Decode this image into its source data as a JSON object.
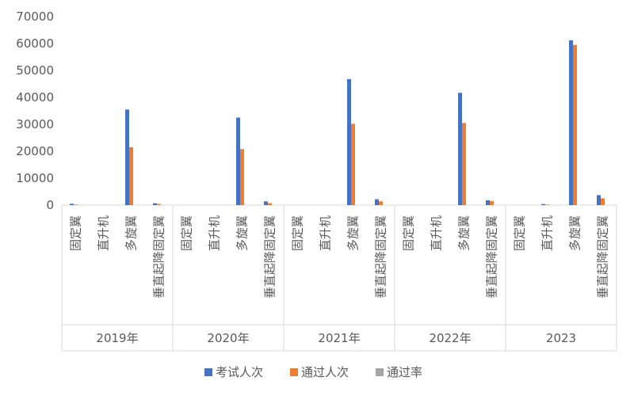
{
  "chart_data": {
    "type": "bar",
    "title": "",
    "xlabel": "",
    "ylabel": "",
    "ylim": [
      0,
      70000
    ],
    "yticks": [
      0,
      10000,
      20000,
      30000,
      40000,
      50000,
      60000,
      70000
    ],
    "grid": false,
    "legend_position": "bottom",
    "groups": [
      "2019年",
      "2020年",
      "2021年",
      "2022年",
      "2023"
    ],
    "categories": [
      "固定翼",
      "直升机",
      "多旋翼",
      "垂直起降固定翼"
    ],
    "series": [
      {
        "name": "考试人次",
        "color": "#4472C4",
        "values": [
          [
            500,
            0,
            35500,
            700
          ],
          [
            0,
            0,
            32500,
            1400
          ],
          [
            0,
            0,
            46800,
            2200
          ],
          [
            0,
            0,
            41700,
            1800
          ],
          [
            0,
            400,
            61200,
            3700
          ]
        ]
      },
      {
        "name": "通过人次",
        "color": "#ED7D31",
        "values": [
          [
            200,
            0,
            21500,
            400
          ],
          [
            0,
            0,
            20800,
            700
          ],
          [
            0,
            0,
            30200,
            1400
          ],
          [
            0,
            0,
            30500,
            1500
          ],
          [
            0,
            200,
            59500,
            2500
          ]
        ]
      },
      {
        "name": "通过率",
        "color": "#A5A5A5",
        "values": [
          [
            0,
            0,
            0,
            0
          ],
          [
            0,
            0,
            0,
            0
          ],
          [
            0,
            0,
            0,
            0
          ],
          [
            0,
            0,
            0,
            0
          ],
          [
            0,
            0,
            0,
            0
          ]
        ]
      }
    ]
  }
}
